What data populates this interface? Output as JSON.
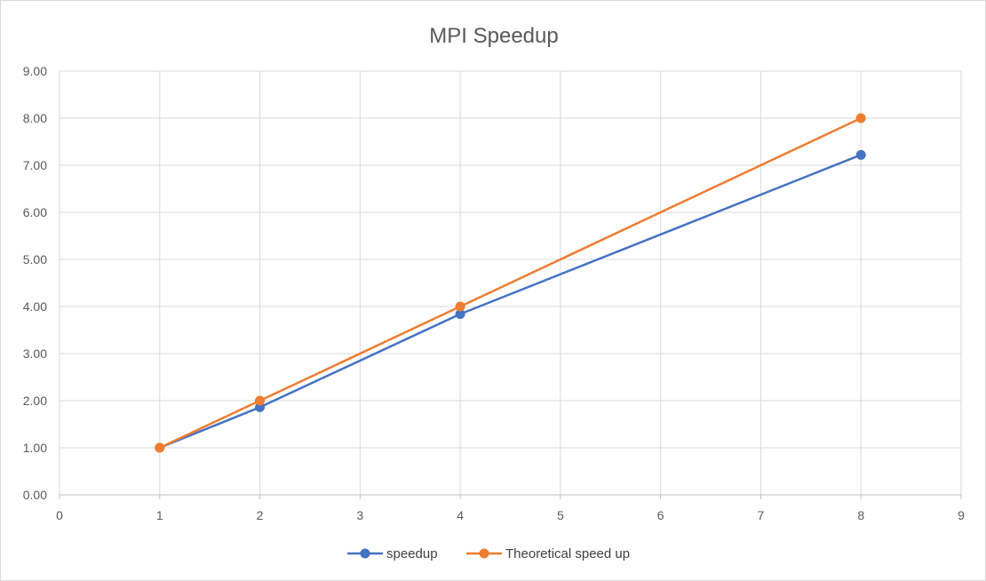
{
  "chart_data": {
    "type": "scatter",
    "title": "MPI Speedup",
    "xlim": [
      0,
      9
    ],
    "ylim": [
      0,
      9
    ],
    "x_ticks": [
      "0",
      "1",
      "2",
      "3",
      "4",
      "5",
      "6",
      "7",
      "8",
      "9"
    ],
    "y_ticks": [
      "0.00",
      "1.00",
      "2.00",
      "3.00",
      "4.00",
      "5.00",
      "6.00",
      "7.00",
      "8.00",
      "9.00"
    ],
    "grid": true,
    "legend": "bottom",
    "series": [
      {
        "name": "speedup",
        "color": "#4472C4",
        "x": [
          1,
          2,
          4,
          8
        ],
        "y": [
          1.0,
          1.86,
          3.84,
          7.22
        ]
      },
      {
        "name": "Theoretical speed up",
        "color": "#ED7D31",
        "x": [
          1,
          2,
          4,
          8
        ],
        "y": [
          1,
          2,
          4,
          8
        ]
      }
    ]
  }
}
